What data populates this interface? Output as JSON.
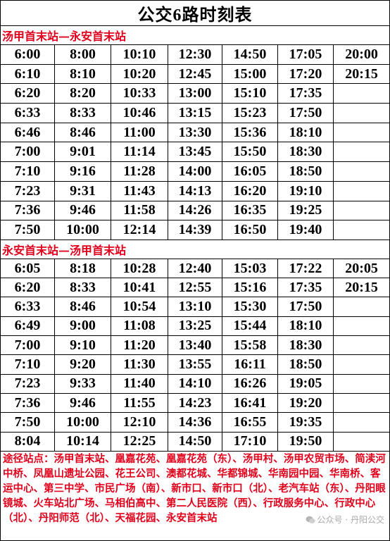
{
  "title": "公交6路时刻表",
  "sections": [
    {
      "label": "汤甲首末站—永安首末站",
      "rows": [
        [
          "6:00",
          "8:00",
          "10:10",
          "12:30",
          "14:50",
          "17:05",
          "20:00"
        ],
        [
          "6:10",
          "8:10",
          "10:20",
          "12:45",
          "15:00",
          "17:20",
          "20:15"
        ],
        [
          "6:20",
          "8:20",
          "10:33",
          "13:00",
          "15:10",
          "17:35",
          ""
        ],
        [
          "6:33",
          "8:33",
          "10:46",
          "13:15",
          "15:23",
          "17:50",
          ""
        ],
        [
          "6:46",
          "8:46",
          "11:00",
          "13:30",
          "15:36",
          "18:10",
          ""
        ],
        [
          "7:00",
          "9:01",
          "11:14",
          "13:45",
          "15:50",
          "18:30",
          ""
        ],
        [
          "7:10",
          "9:16",
          "11:28",
          "14:00",
          "16:05",
          "18:50",
          ""
        ],
        [
          "7:23",
          "9:31",
          "11:43",
          "14:13",
          "16:20",
          "19:10",
          ""
        ],
        [
          "7:36",
          "9:46",
          "11:58",
          "14:26",
          "16:35",
          "19:25",
          ""
        ],
        [
          "7:50",
          "10:00",
          "12:14",
          "14:39",
          "16:50",
          "19:40",
          ""
        ]
      ]
    },
    {
      "label": "永安首末站—汤甲首末站",
      "rows": [
        [
          "6:05",
          "8:18",
          "10:28",
          "12:40",
          "15:03",
          "17:22",
          "20:05"
        ],
        [
          "6:20",
          "8:33",
          "10:41",
          "12:55",
          "15:16",
          "17:35",
          "20:15"
        ],
        [
          "6:33",
          "8:46",
          "10:54",
          "13:10",
          "15:30",
          "17:50",
          ""
        ],
        [
          "6:49",
          "9:00",
          "11:08",
          "13:25",
          "15:44",
          "18:10",
          ""
        ],
        [
          "7:00",
          "9:10",
          "11:20",
          "13:40",
          "15:58",
          "18:30",
          ""
        ],
        [
          "7:10",
          "9:20",
          "11:30",
          "13:55",
          "16:11",
          "18:50",
          ""
        ],
        [
          "7:23",
          "9:33",
          "11:40",
          "14:10",
          "16:26",
          "19:05",
          ""
        ],
        [
          "7:36",
          "9:46",
          "11:55",
          "14:23",
          "16:41",
          "19:20",
          ""
        ],
        [
          "7:50",
          "10:00",
          "12:10",
          "14:36",
          "16:55",
          "19:35",
          ""
        ],
        [
          "8:04",
          "10:14",
          "12:25",
          "14:50",
          "17:10",
          "19:50",
          ""
        ]
      ]
    }
  ],
  "route_text": "途径站点：汤甲首末站、凰嘉花苑、凰嘉花苑（东）、汤甲村、汤甲农贸市场、简渎河中桥、凤凰山遗址公园、花王公司、澳都花城、华都锦城、华南园中园、华南桥、客运中心、第三中学、市民广场（南）、新市口、新市口（北）、老汽车站（东）、丹阳眼镜城、火车站北广场、马相伯高中、第二人民医院（西）、行政服务中心、行政中心（北）、丹阳师范（北）、天福花园、永安首末站",
  "watermark": "公众号 · 丹阳公交",
  "colors": {
    "section_text": "#e0001b",
    "route_text": "#e0001b",
    "border": "#000000"
  },
  "icons": {
    "watermark": "wechat-icon"
  }
}
